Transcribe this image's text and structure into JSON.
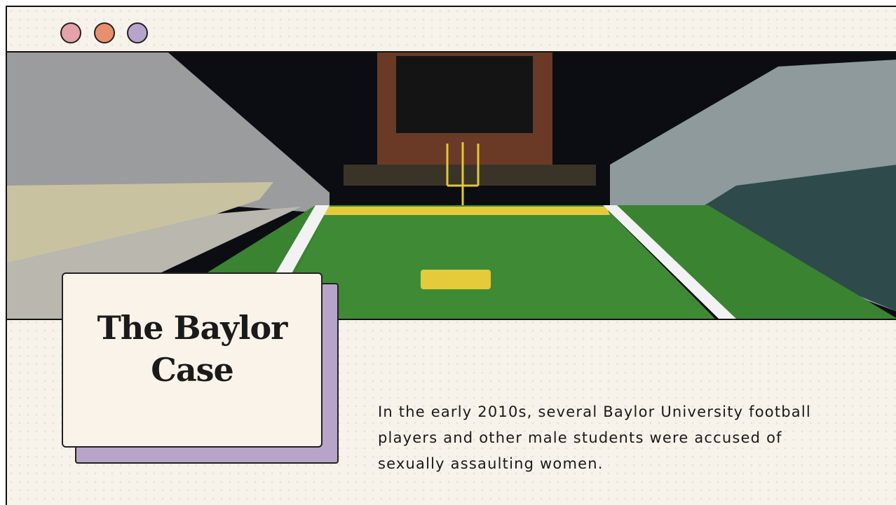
{
  "slide": {
    "title": "The Baylor Case",
    "body": "In the early 2010s, several Baylor University football players and other male students were accused of sexually assaulting women."
  }
}
